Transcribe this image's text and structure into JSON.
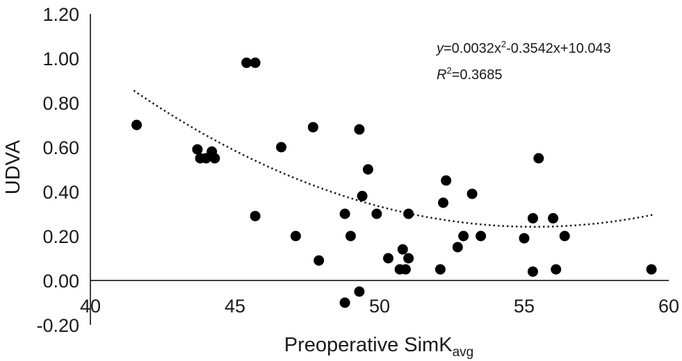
{
  "chart_data": {
    "type": "scatter",
    "title": "",
    "xlabel": "Preoperative SimK",
    "xlabel_subscript": "avg",
    "ylabel": "UDVA",
    "xlim": [
      40,
      60
    ],
    "ylim": [
      -0.2,
      1.2
    ],
    "x_ticks": [
      "40",
      "45",
      "50",
      "55",
      "60"
    ],
    "y_ticks": [
      "1.20",
      "1.00",
      "0.80",
      "0.60",
      "0.40",
      "0.20",
      "0.00",
      "-0.20"
    ],
    "grid": false,
    "legend": "none",
    "marker_color": "#000000",
    "trendline": {
      "type": "polynomial",
      "coefficients": [
        0.0032,
        -0.3542,
        10.043
      ],
      "x_range": [
        41.5,
        59.5
      ],
      "style": "dotted",
      "equation_y": "y",
      "equation_rest": "=0.0032x",
      "equation_exp": "2",
      "equation_tail": "-0.3542x+10.043",
      "r2_symbol": "R",
      "r2_exp": "2",
      "r2_value": "=0.3685"
    },
    "points": [
      {
        "x": 41.6,
        "y": 0.7
      },
      {
        "x": 43.7,
        "y": 0.59
      },
      {
        "x": 43.8,
        "y": 0.55
      },
      {
        "x": 44.0,
        "y": 0.55
      },
      {
        "x": 44.2,
        "y": 0.58
      },
      {
        "x": 44.3,
        "y": 0.55
      },
      {
        "x": 45.4,
        "y": 0.98
      },
      {
        "x": 45.7,
        "y": 0.98
      },
      {
        "x": 45.7,
        "y": 0.29
      },
      {
        "x": 46.6,
        "y": 0.6
      },
      {
        "x": 47.1,
        "y": 0.2
      },
      {
        "x": 47.7,
        "y": 0.69
      },
      {
        "x": 47.9,
        "y": 0.09
      },
      {
        "x": 48.8,
        "y": 0.3
      },
      {
        "x": 48.8,
        "y": -0.1
      },
      {
        "x": 49.0,
        "y": 0.2
      },
      {
        "x": 49.3,
        "y": 0.68
      },
      {
        "x": 49.3,
        "y": -0.05
      },
      {
        "x": 49.4,
        "y": 0.38
      },
      {
        "x": 49.6,
        "y": 0.5
      },
      {
        "x": 49.9,
        "y": 0.3
      },
      {
        "x": 50.3,
        "y": 0.1
      },
      {
        "x": 50.7,
        "y": 0.05
      },
      {
        "x": 50.8,
        "y": 0.14
      },
      {
        "x": 50.9,
        "y": 0.05
      },
      {
        "x": 51.0,
        "y": 0.1
      },
      {
        "x": 51.0,
        "y": 0.3
      },
      {
        "x": 52.1,
        "y": 0.05
      },
      {
        "x": 52.2,
        "y": 0.35
      },
      {
        "x": 52.3,
        "y": 0.45
      },
      {
        "x": 52.7,
        "y": 0.15
      },
      {
        "x": 52.9,
        "y": 0.2
      },
      {
        "x": 53.2,
        "y": 0.39
      },
      {
        "x": 53.5,
        "y": 0.2
      },
      {
        "x": 55.0,
        "y": 0.19
      },
      {
        "x": 55.3,
        "y": 0.28
      },
      {
        "x": 55.3,
        "y": 0.04
      },
      {
        "x": 55.5,
        "y": 0.55
      },
      {
        "x": 56.0,
        "y": 0.28
      },
      {
        "x": 56.1,
        "y": 0.05
      },
      {
        "x": 56.4,
        "y": 0.2
      },
      {
        "x": 59.4,
        "y": 0.05
      }
    ]
  }
}
